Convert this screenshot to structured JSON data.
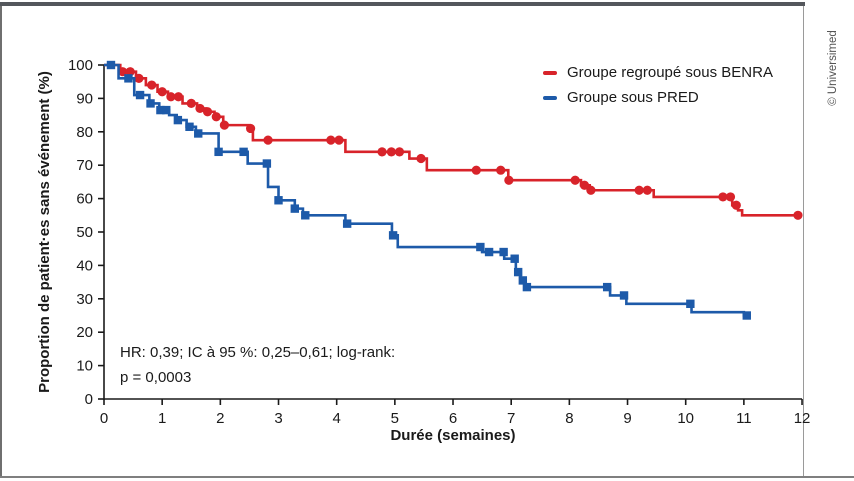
{
  "frame": {
    "copyright": "© Universimed",
    "top_bar_color": "#54575c",
    "border_color": "#7f7f7f"
  },
  "chart_data": {
    "type": "line",
    "subtype": "kaplan-meier-step",
    "title": "",
    "xlabel": "Durée (semaines)",
    "ylabel": "Proportion de patient·es sans événement (%)",
    "xlim": [
      0,
      12
    ],
    "ylim": [
      0,
      100
    ],
    "xticks": [
      0,
      1,
      2,
      3,
      4,
      5,
      6,
      7,
      8,
      9,
      10,
      11,
      12
    ],
    "yticks": [
      0,
      10,
      20,
      30,
      40,
      50,
      60,
      70,
      80,
      90,
      100
    ],
    "grid": false,
    "legend_position": "top-right",
    "annotation": {
      "line1": "HR: 0,39; IC à 95 %: 0,25–0,61; log-rank:",
      "line2": "p = 0,0003"
    },
    "series": [
      {
        "name": "Groupe regroupé sous BENRA",
        "color": "#d8232a",
        "marker": "circle",
        "x_end": 11.95,
        "steps": [
          [
            0,
            100
          ],
          [
            0.28,
            98
          ],
          [
            0.55,
            96
          ],
          [
            0.72,
            94
          ],
          [
            0.92,
            92
          ],
          [
            1.1,
            90.5
          ],
          [
            1.35,
            88.5
          ],
          [
            1.6,
            87
          ],
          [
            1.75,
            86
          ],
          [
            1.9,
            84.5
          ],
          [
            2.05,
            82
          ],
          [
            2.5,
            81
          ],
          [
            2.56,
            77.5
          ],
          [
            4.15,
            74
          ],
          [
            5.25,
            72
          ],
          [
            5.55,
            68.5
          ],
          [
            6.95,
            65.5
          ],
          [
            8.2,
            64
          ],
          [
            8.35,
            62.5
          ],
          [
            9.45,
            60.5
          ],
          [
            10.8,
            58
          ],
          [
            10.9,
            56.5
          ],
          [
            10.97,
            55
          ]
        ],
        "censors": [
          0.32,
          0.45,
          0.6,
          0.82,
          1.0,
          1.15,
          1.28,
          1.5,
          1.65,
          1.78,
          1.93,
          2.07,
          2.52,
          2.82,
          3.9,
          4.04,
          4.78,
          4.94,
          5.08,
          5.45,
          6.4,
          6.82,
          6.96,
          8.1,
          8.26,
          8.37,
          9.2,
          9.34,
          10.64,
          10.77,
          10.87,
          11.93
        ]
      },
      {
        "name": "Groupe sous PRED",
        "color": "#1d5aa9",
        "marker": "square",
        "x_end": 11.12,
        "steps": [
          [
            0,
            100
          ],
          [
            0.25,
            96
          ],
          [
            0.52,
            91
          ],
          [
            0.78,
            88.5
          ],
          [
            0.95,
            86.5
          ],
          [
            1.12,
            85
          ],
          [
            1.25,
            83.5
          ],
          [
            1.42,
            81.5
          ],
          [
            1.58,
            79.5
          ],
          [
            1.97,
            74
          ],
          [
            2.47,
            70.5
          ],
          [
            2.82,
            63.5
          ],
          [
            3.0,
            59.5
          ],
          [
            3.28,
            57
          ],
          [
            3.42,
            55
          ],
          [
            4.15,
            52.5
          ],
          [
            4.95,
            49
          ],
          [
            5.05,
            45.5
          ],
          [
            6.5,
            44
          ],
          [
            6.88,
            42
          ],
          [
            7.08,
            38
          ],
          [
            7.16,
            35.5
          ],
          [
            7.24,
            33.5
          ],
          [
            8.7,
            31
          ],
          [
            8.98,
            28.5
          ],
          [
            10.1,
            26
          ],
          [
            11.0,
            25
          ]
        ],
        "censors": [
          0.12,
          0.42,
          0.62,
          0.8,
          0.97,
          1.07,
          1.27,
          1.47,
          1.62,
          1.97,
          2.4,
          2.8,
          3.0,
          3.28,
          3.46,
          4.18,
          4.97,
          6.47,
          6.62,
          6.87,
          7.06,
          7.12,
          7.2,
          7.27,
          8.65,
          8.94,
          10.08,
          11.05
        ]
      }
    ]
  }
}
